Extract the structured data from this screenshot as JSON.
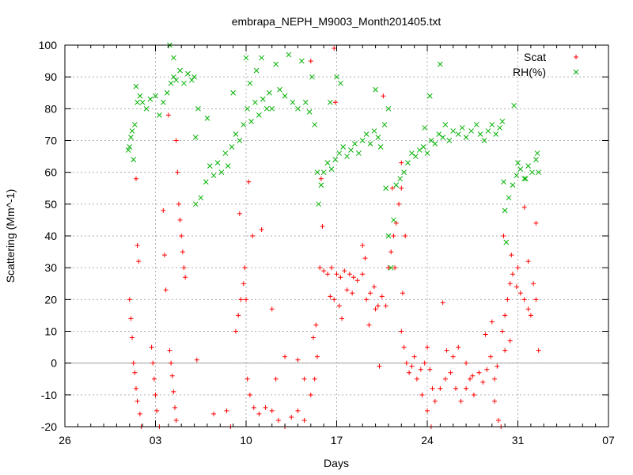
{
  "chart_data": {
    "type": "scatter",
    "title": "embrapa_NEPH_M9003_Month201405.txt",
    "xlabel": "Days",
    "ylabel": "Scattering (Mm^-1)",
    "x_tick_labels": [
      "26",
      "03",
      "10",
      "17",
      "24",
      "31",
      "07"
    ],
    "x_tick_days": [
      26,
      33,
      40,
      47,
      54,
      61,
      68
    ],
    "xlim": [
      26,
      68
    ],
    "ylim": [
      -20,
      100
    ],
    "y_ticks": [
      -20,
      -10,
      0,
      10,
      20,
      30,
      40,
      50,
      60,
      70,
      80,
      90,
      100
    ],
    "grid": true,
    "legend_position": "top-right",
    "colors": {
      "scat": "#ff0000",
      "rh": "#00b000",
      "zero_line": "#a0a0a0"
    },
    "series": [
      {
        "name": "Scat",
        "marker": "plus",
        "points": [
          [
            31.0,
            20
          ],
          [
            31.1,
            14
          ],
          [
            31.2,
            8
          ],
          [
            31.3,
            0
          ],
          [
            31.4,
            -3
          ],
          [
            31.5,
            -8
          ],
          [
            31.6,
            -12
          ],
          [
            31.8,
            -16
          ],
          [
            31.9,
            -20
          ],
          [
            31.5,
            58
          ],
          [
            31.6,
            37
          ],
          [
            31.7,
            32
          ],
          [
            32.7,
            5
          ],
          [
            32.8,
            0
          ],
          [
            32.9,
            -5
          ],
          [
            33.0,
            -10
          ],
          [
            33.1,
            -15
          ],
          [
            33.3,
            -20
          ],
          [
            33.6,
            48
          ],
          [
            33.7,
            34
          ],
          [
            33.8,
            23
          ],
          [
            34.0,
            78
          ],
          [
            34.1,
            4
          ],
          [
            34.2,
            0
          ],
          [
            34.3,
            -4
          ],
          [
            34.4,
            -9
          ],
          [
            34.5,
            -14
          ],
          [
            34.6,
            -18
          ],
          [
            34.6,
            70
          ],
          [
            34.7,
            60
          ],
          [
            34.8,
            50
          ],
          [
            34.9,
            45
          ],
          [
            35.0,
            40
          ],
          [
            35.1,
            35
          ],
          [
            35.2,
            30
          ],
          [
            35.3,
            27
          ],
          [
            36.2,
            1
          ],
          [
            37.5,
            -16
          ],
          [
            38.5,
            -15
          ],
          [
            38.8,
            -20
          ],
          [
            39.2,
            10
          ],
          [
            39.4,
            15
          ],
          [
            39.6,
            20
          ],
          [
            39.8,
            25
          ],
          [
            39.9,
            30
          ],
          [
            40.0,
            20
          ],
          [
            39.5,
            47
          ],
          [
            40.5,
            40
          ],
          [
            40.2,
            57
          ],
          [
            40.1,
            -5
          ],
          [
            40.3,
            -10
          ],
          [
            40.6,
            -14
          ],
          [
            41.0,
            -16
          ],
          [
            41.5,
            -14
          ],
          [
            42.0,
            -15
          ],
          [
            42.5,
            -18
          ],
          [
            43.0,
            -20
          ],
          [
            43.5,
            -17
          ],
          [
            44.0,
            -15
          ],
          [
            44.5,
            -18
          ],
          [
            41.2,
            42
          ],
          [
            42.0,
            17
          ],
          [
            42.3,
            -5
          ],
          [
            43.0,
            2
          ],
          [
            44.0,
            1
          ],
          [
            44.5,
            -5
          ],
          [
            45.0,
            -10
          ],
          [
            45.3,
            -5
          ],
          [
            45.5,
            2
          ],
          [
            45.2,
            8
          ],
          [
            45.4,
            12
          ],
          [
            45.0,
            95
          ],
          [
            45.8,
            58
          ],
          [
            45.9,
            43
          ],
          [
            45.7,
            30
          ],
          [
            46.0,
            29
          ],
          [
            46.3,
            28
          ],
          [
            46.6,
            30
          ],
          [
            47.0,
            28
          ],
          [
            47.3,
            27
          ],
          [
            47.6,
            29
          ],
          [
            48.0,
            28
          ],
          [
            48.3,
            27
          ],
          [
            48.6,
            26
          ],
          [
            49.0,
            28
          ],
          [
            49.2,
            33
          ],
          [
            46.5,
            21
          ],
          [
            46.8,
            20
          ],
          [
            47.2,
            18
          ],
          [
            47.4,
            14
          ],
          [
            47.8,
            23
          ],
          [
            48.2,
            22
          ],
          [
            46.8,
            99
          ],
          [
            46.9,
            82
          ],
          [
            49.3,
            20
          ],
          [
            49.6,
            22
          ],
          [
            49.9,
            24
          ],
          [
            50.2,
            18
          ],
          [
            50.5,
            21
          ],
          [
            50.8,
            18
          ],
          [
            49.5,
            12
          ],
          [
            50.0,
            17
          ],
          [
            50.3,
            -1
          ],
          [
            49.0,
            37
          ],
          [
            50.6,
            84
          ],
          [
            51.0,
            30
          ],
          [
            51.2,
            35
          ],
          [
            51.4,
            40
          ],
          [
            51.6,
            44
          ],
          [
            51.8,
            50
          ],
          [
            52.0,
            55
          ],
          [
            51.5,
            30
          ],
          [
            52.1,
            22
          ],
          [
            51.3,
            55
          ],
          [
            52.3,
            40
          ],
          [
            52.0,
            63
          ],
          [
            52.0,
            10
          ],
          [
            52.2,
            5
          ],
          [
            52.4,
            0
          ],
          [
            52.6,
            -3
          ],
          [
            52.8,
            -1
          ],
          [
            53.0,
            2
          ],
          [
            53.2,
            -5
          ],
          [
            53.5,
            -2
          ],
          [
            53.8,
            0
          ],
          [
            54.0,
            5
          ],
          [
            54.2,
            -2
          ],
          [
            54.4,
            -8
          ],
          [
            53.6,
            -10
          ],
          [
            54.0,
            -15
          ],
          [
            54.3,
            -20
          ],
          [
            54.6,
            -12
          ],
          [
            55.0,
            -8
          ],
          [
            55.4,
            -5
          ],
          [
            55.8,
            -3
          ],
          [
            56.2,
            -8
          ],
          [
            56.6,
            -12
          ],
          [
            57.0,
            -8
          ],
          [
            57.3,
            -5
          ],
          [
            57.6,
            -10
          ],
          [
            55.2,
            19
          ],
          [
            55.5,
            4
          ],
          [
            56.0,
            2
          ],
          [
            56.4,
            5
          ],
          [
            57.0,
            0
          ],
          [
            57.5,
            -4
          ],
          [
            58.0,
            -3
          ],
          [
            58.3,
            -6
          ],
          [
            58.6,
            -2
          ],
          [
            58.9,
            2
          ],
          [
            59.2,
            -5
          ],
          [
            59.4,
            -1
          ],
          [
            58.5,
            9
          ],
          [
            59.0,
            13
          ],
          [
            59.2,
            -12
          ],
          [
            59.5,
            -18
          ],
          [
            59.7,
            -20
          ],
          [
            59.8,
            10
          ],
          [
            60.0,
            15
          ],
          [
            60.2,
            20
          ],
          [
            60.4,
            25
          ],
          [
            60.6,
            28
          ],
          [
            60.9,
            24
          ],
          [
            61.2,
            22
          ],
          [
            61.5,
            20
          ],
          [
            61.8,
            17
          ],
          [
            62.0,
            15
          ],
          [
            62.2,
            25
          ],
          [
            62.4,
            20
          ],
          [
            60.5,
            34
          ],
          [
            61.0,
            30
          ],
          [
            61.8,
            32
          ],
          [
            62.4,
            44
          ],
          [
            62.6,
            4
          ],
          [
            61.5,
            49
          ],
          [
            59.9,
            40
          ],
          [
            60.0,
            4
          ],
          [
            60.4,
            7
          ]
        ]
      },
      {
        "name": "RH(%)",
        "marker": "x",
        "points": [
          [
            30.9,
            67
          ],
          [
            31.0,
            68
          ],
          [
            31.1,
            71
          ],
          [
            31.2,
            73
          ],
          [
            31.3,
            64
          ],
          [
            31.4,
            75
          ],
          [
            31.5,
            87
          ],
          [
            31.6,
            82
          ],
          [
            31.8,
            84
          ],
          [
            32.0,
            82
          ],
          [
            32.3,
            80
          ],
          [
            32.6,
            83
          ],
          [
            33.0,
            84
          ],
          [
            33.3,
            78
          ],
          [
            33.6,
            82
          ],
          [
            33.9,
            85
          ],
          [
            34.2,
            88
          ],
          [
            34.4,
            90
          ],
          [
            34.6,
            89
          ],
          [
            34.9,
            92
          ],
          [
            35.2,
            88
          ],
          [
            35.5,
            91
          ],
          [
            35.8,
            89
          ],
          [
            36.0,
            90
          ],
          [
            34.1,
            100
          ],
          [
            34.4,
            96
          ],
          [
            36.1,
            71
          ],
          [
            36.3,
            80
          ],
          [
            36.1,
            50
          ],
          [
            36.5,
            52
          ],
          [
            36.9,
            57
          ],
          [
            37.2,
            62
          ],
          [
            37.5,
            59
          ],
          [
            37.8,
            63
          ],
          [
            38.1,
            60
          ],
          [
            38.4,
            66
          ],
          [
            37.0,
            77
          ],
          [
            38.6,
            62
          ],
          [
            38.9,
            68
          ],
          [
            39.2,
            72
          ],
          [
            39.5,
            70
          ],
          [
            39.8,
            75
          ],
          [
            40.1,
            80
          ],
          [
            40.4,
            76
          ],
          [
            40.7,
            82
          ],
          [
            41.0,
            78
          ],
          [
            41.3,
            83
          ],
          [
            41.6,
            80
          ],
          [
            39.0,
            85
          ],
          [
            40.0,
            96
          ],
          [
            40.3,
            88
          ],
          [
            40.8,
            92
          ],
          [
            41.2,
            96
          ],
          [
            41.8,
            85
          ],
          [
            42.0,
            80
          ],
          [
            42.3,
            94
          ],
          [
            42.6,
            86
          ],
          [
            43.0,
            84
          ],
          [
            43.3,
            97
          ],
          [
            43.6,
            82
          ],
          [
            44.0,
            80
          ],
          [
            44.3,
            95
          ],
          [
            44.6,
            82
          ],
          [
            44.9,
            79
          ],
          [
            45.1,
            90
          ],
          [
            45.3,
            75
          ],
          [
            45.5,
            60
          ],
          [
            45.6,
            50
          ],
          [
            45.8,
            56
          ],
          [
            46.0,
            60
          ],
          [
            46.3,
            63
          ],
          [
            46.6,
            61
          ],
          [
            46.9,
            64
          ],
          [
            47.2,
            66
          ],
          [
            47.5,
            68
          ],
          [
            47.8,
            65
          ],
          [
            48.1,
            67
          ],
          [
            48.4,
            69
          ],
          [
            48.7,
            66
          ],
          [
            49.0,
            70
          ],
          [
            49.3,
            72
          ],
          [
            49.6,
            69
          ],
          [
            49.9,
            73
          ],
          [
            50.2,
            71
          ],
          [
            47.0,
            90
          ],
          [
            46.5,
            82
          ],
          [
            47.3,
            88
          ],
          [
            50.0,
            86
          ],
          [
            50.4,
            68
          ],
          [
            50.7,
            75
          ],
          [
            51.0,
            80
          ],
          [
            50.8,
            55
          ],
          [
            51.0,
            40
          ],
          [
            51.2,
            30
          ],
          [
            51.4,
            45
          ],
          [
            51.6,
            56
          ],
          [
            51.9,
            58
          ],
          [
            52.2,
            60
          ],
          [
            52.5,
            63
          ],
          [
            52.8,
            66
          ],
          [
            53.1,
            65
          ],
          [
            53.4,
            67
          ],
          [
            53.7,
            68
          ],
          [
            54.0,
            66
          ],
          [
            54.3,
            70
          ],
          [
            54.6,
            69
          ],
          [
            54.9,
            72
          ],
          [
            55.2,
            71
          ],
          [
            53.8,
            74
          ],
          [
            54.2,
            84
          ],
          [
            55.0,
            94
          ],
          [
            55.4,
            75
          ],
          [
            55.7,
            70
          ],
          [
            56.0,
            73
          ],
          [
            56.4,
            72
          ],
          [
            56.7,
            74
          ],
          [
            57.0,
            71
          ],
          [
            57.4,
            73
          ],
          [
            57.8,
            75
          ],
          [
            58.1,
            72
          ],
          [
            58.4,
            70
          ],
          [
            58.7,
            73
          ],
          [
            59.0,
            75
          ],
          [
            59.3,
            72
          ],
          [
            59.6,
            74
          ],
          [
            59.8,
            76
          ],
          [
            59.9,
            57
          ],
          [
            60.0,
            48
          ],
          [
            60.1,
            38
          ],
          [
            60.3,
            52
          ],
          [
            60.6,
            56
          ],
          [
            60.9,
            59
          ],
          [
            61.2,
            61
          ],
          [
            61.5,
            58
          ],
          [
            61.8,
            62
          ],
          [
            62.1,
            60
          ],
          [
            62.4,
            64
          ],
          [
            62.6,
            60
          ],
          [
            61.0,
            63
          ],
          [
            61.6,
            58
          ],
          [
            60.7,
            81
          ],
          [
            62.5,
            66
          ]
        ]
      }
    ]
  }
}
